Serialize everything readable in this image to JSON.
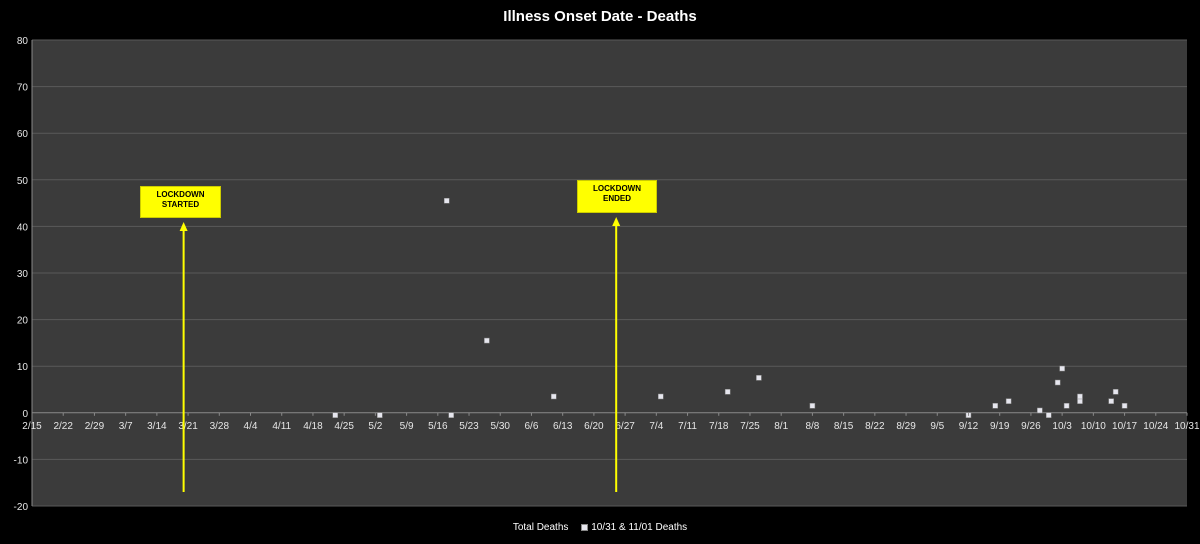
{
  "chart_data": {
    "type": "bar",
    "title": "Illness Onset Date - Deaths",
    "xlabel": "",
    "ylabel": "",
    "ylim": [
      -20,
      80
    ],
    "yticks": [
      -20,
      -10,
      0,
      10,
      20,
      30,
      40,
      50,
      60,
      70,
      80
    ],
    "x_tick_labels": [
      "2/15",
      "2/22",
      "2/29",
      "3/7",
      "3/14",
      "3/21",
      "3/28",
      "4/4",
      "4/11",
      "4/18",
      "4/25",
      "5/2",
      "5/9",
      "5/16",
      "5/23",
      "5/30",
      "6/6",
      "6/13",
      "6/20",
      "6/27",
      "7/4",
      "7/11",
      "7/18",
      "7/25",
      "8/1",
      "8/8",
      "8/15",
      "8/22",
      "8/29",
      "9/5",
      "9/12",
      "9/19",
      "9/26",
      "10/3",
      "10/10",
      "10/17",
      "10/24",
      "10/31"
    ],
    "x_range_days": [
      0,
      259
    ],
    "grid": true,
    "legend_position": "bottom",
    "series": [
      {
        "name": "Total Deaths",
        "color": "#262626",
        "start_label": "2/15",
        "values": [
          0,
          0,
          0,
          0,
          0,
          0,
          0,
          0,
          0,
          0,
          0,
          0,
          0,
          0,
          0,
          0,
          0,
          0,
          0,
          0,
          0,
          0,
          0,
          0,
          0,
          0,
          0,
          0,
          0,
          0,
          0,
          0,
          0,
          0,
          0,
          0,
          0,
          0,
          0,
          0,
          0,
          0,
          0,
          0,
          0,
          0,
          0,
          0,
          0,
          0,
          0,
          0,
          0,
          0,
          0,
          0,
          0,
          0,
          0,
          0,
          0,
          0,
          0,
          0,
          0,
          0,
          0,
          0,
          0,
          0,
          0,
          0,
          0,
          0,
          0,
          0,
          0,
          0,
          0,
          0,
          0,
          0,
          0,
          0,
          0,
          0,
          0,
          0,
          0,
          0,
          0,
          0,
          0,
          0,
          0,
          0,
          0,
          0,
          0,
          0,
          0,
          0,
          0,
          0,
          0,
          0,
          0,
          0,
          0,
          0,
          0,
          0,
          0,
          0,
          0,
          0,
          0,
          0,
          0,
          0,
          0,
          0,
          0,
          0,
          0,
          0,
          0,
          0,
          0,
          0,
          0,
          0,
          0,
          0,
          0,
          0,
          0,
          0,
          0,
          0,
          0,
          0,
          0,
          0,
          0,
          0,
          0,
          0,
          0,
          0,
          0,
          0,
          0,
          0,
          0,
          0,
          0,
          0,
          0,
          0,
          0,
          0,
          0,
          0,
          0,
          0,
          0,
          0,
          0,
          0,
          0,
          0,
          0,
          0,
          0,
          0,
          0,
          0,
          0,
          0,
          0,
          0,
          0,
          0,
          0,
          0,
          0,
          0,
          0,
          0,
          0,
          0,
          0,
          0,
          0,
          0,
          0,
          0,
          0,
          0,
          0,
          0,
          0,
          0,
          0,
          0,
          0,
          0,
          0,
          0,
          0,
          0,
          0,
          0,
          0,
          0,
          0,
          0,
          0,
          0,
          0,
          0,
          0,
          0,
          0,
          0,
          0,
          0,
          0,
          0,
          0,
          0,
          0,
          0,
          0,
          0,
          0,
          0,
          0,
          0,
          0,
          0,
          0,
          0,
          0,
          0,
          0,
          0,
          0,
          0,
          0,
          0,
          0,
          0,
          0,
          0,
          0,
          0,
          0
        ]
      },
      {
        "name": "10/31 & 11/01 Deaths",
        "color": "#e6e6ee",
        "points": [
          {
            "x": "4/23",
            "y": -0.5
          },
          {
            "x": "5/3",
            "y": -0.5
          },
          {
            "x": "5/18",
            "y": 45.5
          },
          {
            "x": "5/19",
            "y": -0.5
          },
          {
            "x": "5/27",
            "y": 15.5
          },
          {
            "x": "6/11",
            "y": 3.5
          },
          {
            "x": "7/5",
            "y": 3.5
          },
          {
            "x": "7/20",
            "y": 4.5
          },
          {
            "x": "7/27",
            "y": 7.5
          },
          {
            "x": "8/8",
            "y": 1.5
          },
          {
            "x": "9/12",
            "y": -0.5
          },
          {
            "x": "9/18",
            "y": 1.5
          },
          {
            "x": "9/21",
            "y": 2.5
          },
          {
            "x": "9/28",
            "y": 0.5
          },
          {
            "x": "9/30",
            "y": -0.5
          },
          {
            "x": "10/2",
            "y": 6.5
          },
          {
            "x": "10/3",
            "y": 9.5
          },
          {
            "x": "10/4",
            "y": 1.5
          },
          {
            "x": "10/7",
            "y": 2.5
          },
          {
            "x": "10/7",
            "y": 3.5
          },
          {
            "x": "10/14",
            "y": 2.5
          },
          {
            "x": "10/15",
            "y": 4.5
          },
          {
            "x": "10/17",
            "y": 1.5
          }
        ]
      }
    ],
    "annotations": [
      {
        "text": "LOCKDOWN\nSTARTED",
        "x": "3/20"
      },
      {
        "text": "LOCKDOWN\nENDED",
        "x": "6/25"
      }
    ]
  },
  "legend": {
    "item1": "Total Deaths",
    "item2": "10/31 & 11/01 Deaths"
  },
  "annotations": {
    "lockdown_started_line1": "LOCKDOWN",
    "lockdown_started_line2": "STARTED",
    "lockdown_ended_line1": "LOCKDOWN",
    "lockdown_ended_line2": "ENDED"
  }
}
